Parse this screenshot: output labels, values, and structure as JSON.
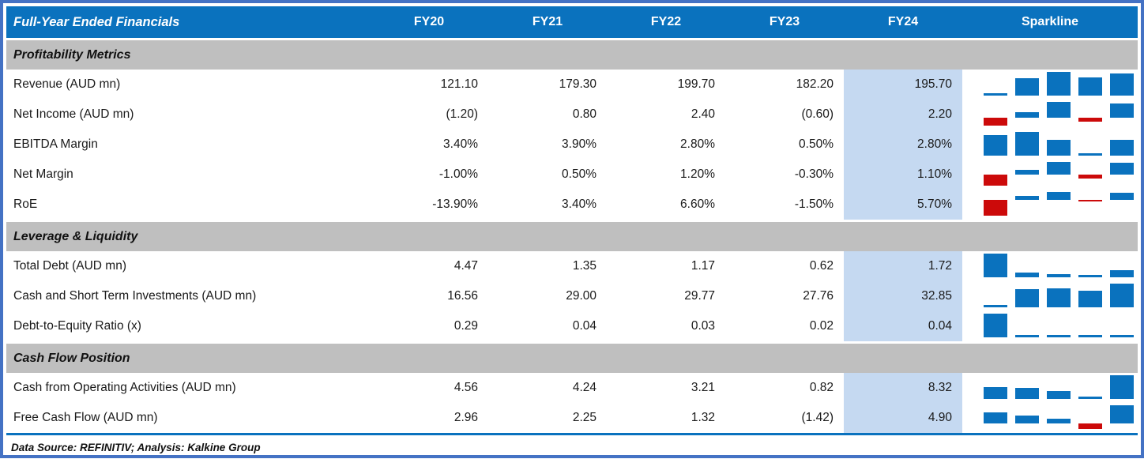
{
  "header": {
    "title": "Full-Year Ended Financials",
    "columns": [
      "FY20",
      "FY21",
      "FY22",
      "FY23",
      "FY24"
    ],
    "sparkline_label": "Sparkline",
    "highlight_column": "FY24"
  },
  "chart_data": {
    "type": "table",
    "title": "Full-Year Ended Financials",
    "categories": [
      "FY20",
      "FY21",
      "FY22",
      "FY23",
      "FY24"
    ],
    "sparkline_style": {
      "type": "bar",
      "positive_color": "#0a72be",
      "negative_color": "#cc0a0a"
    },
    "sections": [
      {
        "title": "Profitability Metrics",
        "rows": [
          {
            "label": "Revenue (AUD mn)",
            "display": [
              "121.10",
              "179.30",
              "199.70",
              "182.20",
              "195.70"
            ],
            "values": [
              121.1,
              179.3,
              199.7,
              182.2,
              195.7
            ]
          },
          {
            "label": "Net Income (AUD mn)",
            "display": [
              "(1.20)",
              "0.80",
              "2.40",
              "(0.60)",
              "2.20"
            ],
            "values": [
              -1.2,
              0.8,
              2.4,
              -0.6,
              2.2
            ]
          },
          {
            "label": "EBITDA Margin",
            "display": [
              "3.40%",
              "3.90%",
              "2.80%",
              "0.50%",
              "2.80%"
            ],
            "values": [
              3.4,
              3.9,
              2.8,
              0.5,
              2.8
            ]
          },
          {
            "label": "Net Margin",
            "display": [
              "-1.00%",
              "0.50%",
              "1.20%",
              "-0.30%",
              "1.10%"
            ],
            "values": [
              -1.0,
              0.5,
              1.2,
              -0.3,
              1.1
            ]
          },
          {
            "label": "RoE",
            "display": [
              "-13.90%",
              "3.40%",
              "6.60%",
              "-1.50%",
              "5.70%"
            ],
            "values": [
              -13.9,
              3.4,
              6.6,
              -1.5,
              5.7
            ]
          }
        ]
      },
      {
        "title": "Leverage & Liquidity",
        "rows": [
          {
            "label": "Total Debt (AUD mn)",
            "display": [
              "4.47",
              "1.35",
              "1.17",
              "0.62",
              "1.72"
            ],
            "values": [
              4.47,
              1.35,
              1.17,
              0.62,
              1.72
            ]
          },
          {
            "label": "Cash and Short Term Investments (AUD mn)",
            "display": [
              "16.56",
              "29.00",
              "29.77",
              "27.76",
              "32.85"
            ],
            "values": [
              16.56,
              29.0,
              29.77,
              27.76,
              32.85
            ]
          },
          {
            "label": "Debt-to-Equity Ratio (x)",
            "display": [
              "0.29",
              "0.04",
              "0.03",
              "0.02",
              "0.04"
            ],
            "values": [
              0.29,
              0.04,
              0.03,
              0.02,
              0.04
            ]
          }
        ]
      },
      {
        "title": "Cash Flow Position",
        "rows": [
          {
            "label": "Cash from Operating Activities (AUD mn)",
            "display": [
              "4.56",
              "4.24",
              "3.21",
              "0.82",
              "8.32"
            ],
            "values": [
              4.56,
              4.24,
              3.21,
              0.82,
              8.32
            ]
          },
          {
            "label": "Free Cash Flow (AUD mn)",
            "display": [
              "2.96",
              "2.25",
              "1.32",
              "(1.42)",
              "4.90"
            ],
            "values": [
              2.96,
              2.25,
              1.32,
              -1.42,
              4.9
            ]
          }
        ]
      }
    ]
  },
  "footer": {
    "text": "Data Source: REFINITIV; Analysis: Kalkine Group"
  },
  "colors": {
    "header_bg": "#0a72be",
    "header_text": "#ffffff",
    "section_bg": "#bfbfbf",
    "fy24_highlight": "#c5d9f1",
    "outer_border": "#4472c4",
    "separator_line": "#0a72be",
    "spark_positive": "#0a72be",
    "spark_negative": "#cc0a0a"
  }
}
